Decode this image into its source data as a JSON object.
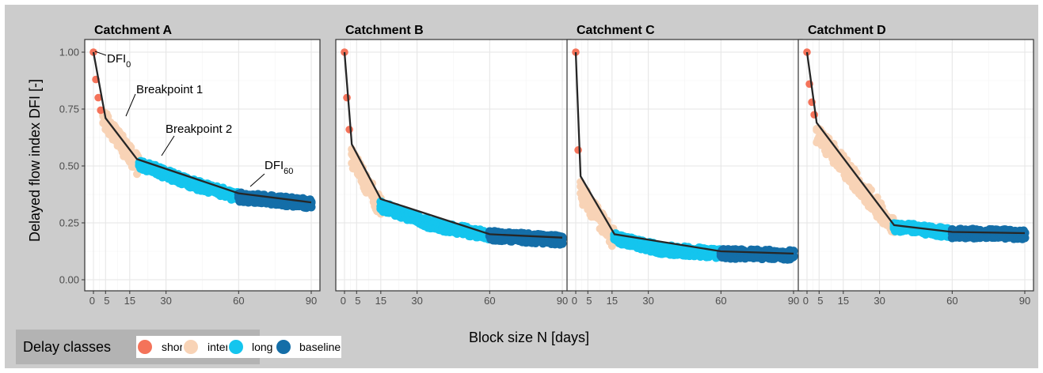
{
  "figure": {
    "background": "#cccccc",
    "ylabel": "Delayed flow index DFI [-]",
    "xlabel": "Block size N [days]"
  },
  "legend": {
    "title": "Delay classes",
    "items": [
      {
        "label": "short",
        "color": "#f4735a"
      },
      {
        "label": "inter",
        "color": "#f8d3b6"
      },
      {
        "label": "long",
        "color": "#14c5ee"
      },
      {
        "label": "baseline",
        "color": "#146ea8"
      }
    ]
  },
  "annotations": {
    "dfi0_main": "DFI",
    "dfi0_sub": "0",
    "bp1": "Breakpoint 1",
    "bp2": "Breakpoint 2",
    "dfi60_main": "DFI",
    "dfi60_sub": "60"
  },
  "chart_data": [
    {
      "type": "scatter",
      "title": "Catchment A",
      "xlim": [
        0,
        90
      ],
      "ylim": [
        0,
        1
      ],
      "x_ticks": [
        0,
        5,
        15,
        30,
        60,
        90
      ],
      "y_ticks": [
        "0.00",
        "0.25",
        "0.50",
        "0.75",
        "1.00"
      ],
      "short_points": [
        {
          "x": 0,
          "y": 1.0
        },
        {
          "x": 1,
          "y": 0.88
        },
        {
          "x": 2,
          "y": 0.8
        },
        {
          "x": 3,
          "y": 0.745
        }
      ],
      "class_ranges": {
        "inter": [
          4,
          19
        ],
        "long": [
          19,
          60
        ],
        "baseline": [
          60,
          90
        ]
      },
      "breakpoints": [
        {
          "x": 0,
          "y": 1.0
        },
        {
          "x": 5,
          "y": 0.71
        },
        {
          "x": 18,
          "y": 0.53
        },
        {
          "x": 60,
          "y": 0.38
        },
        {
          "x": 90,
          "y": 0.34
        }
      ],
      "scatter_curve": [
        {
          "x": 4,
          "y": 0.72
        },
        {
          "x": 18,
          "y": 0.52
        },
        {
          "x": 40,
          "y": 0.43
        },
        {
          "x": 60,
          "y": 0.37
        },
        {
          "x": 90,
          "y": 0.34
        }
      ]
    },
    {
      "type": "scatter",
      "title": "Catchment B",
      "xlim": [
        0,
        90
      ],
      "ylim": [
        0,
        1
      ],
      "x_ticks": [
        0,
        5,
        15,
        30,
        60,
        90
      ],
      "y_ticks": [
        "0.00",
        "0.25",
        "0.50",
        "0.75",
        "1.00"
      ],
      "short_points": [
        {
          "x": 0,
          "y": 1.0
        },
        {
          "x": 1,
          "y": 0.8
        },
        {
          "x": 2,
          "y": 0.66
        }
      ],
      "class_ranges": {
        "inter": [
          3,
          15
        ],
        "long": [
          15,
          60
        ],
        "baseline": [
          60,
          90
        ]
      },
      "breakpoints": [
        {
          "x": 0,
          "y": 1.0
        },
        {
          "x": 3,
          "y": 0.595
        },
        {
          "x": 15,
          "y": 0.355
        },
        {
          "x": 60,
          "y": 0.2
        },
        {
          "x": 90,
          "y": 0.185
        }
      ],
      "scatter_curve": [
        {
          "x": 3,
          "y": 0.55
        },
        {
          "x": 15,
          "y": 0.33
        },
        {
          "x": 35,
          "y": 0.25
        },
        {
          "x": 60,
          "y": 0.2
        },
        {
          "x": 90,
          "y": 0.18
        }
      ]
    },
    {
      "type": "scatter",
      "title": "Catchment C",
      "xlim": [
        0,
        90
      ],
      "ylim": [
        0,
        1
      ],
      "x_ticks": [
        0,
        5,
        15,
        30,
        60,
        90
      ],
      "y_ticks": [
        "0.00",
        "0.25",
        "0.50",
        "0.75",
        "1.00"
      ],
      "short_points": [
        {
          "x": 0,
          "y": 1.0
        },
        {
          "x": 1,
          "y": 0.57
        }
      ],
      "class_ranges": {
        "inter": [
          2,
          16
        ],
        "long": [
          16,
          60
        ],
        "baseline": [
          60,
          90
        ]
      },
      "breakpoints": [
        {
          "x": 0,
          "y": 1.0
        },
        {
          "x": 2,
          "y": 0.455
        },
        {
          "x": 16,
          "y": 0.2
        },
        {
          "x": 60,
          "y": 0.125
        },
        {
          "x": 90,
          "y": 0.115
        }
      ],
      "scatter_curve": [
        {
          "x": 2,
          "y": 0.4
        },
        {
          "x": 16,
          "y": 0.19
        },
        {
          "x": 35,
          "y": 0.14
        },
        {
          "x": 60,
          "y": 0.12
        },
        {
          "x": 90,
          "y": 0.115
        }
      ]
    },
    {
      "type": "scatter",
      "title": "Catchment D",
      "xlim": [
        0,
        90
      ],
      "ylim": [
        0,
        1
      ],
      "x_ticks": [
        0,
        5,
        15,
        30,
        60,
        90
      ],
      "y_ticks": [
        "0.00",
        "0.25",
        "0.50",
        "0.75",
        "1.00"
      ],
      "short_points": [
        {
          "x": 0,
          "y": 1.0
        },
        {
          "x": 1,
          "y": 0.86
        },
        {
          "x": 2,
          "y": 0.78
        },
        {
          "x": 3,
          "y": 0.725
        }
      ],
      "class_ranges": {
        "inter": [
          4,
          36
        ],
        "long": [
          36,
          60
        ],
        "baseline": [
          60,
          90
        ]
      },
      "breakpoints": [
        {
          "x": 0,
          "y": 1.0
        },
        {
          "x": 4,
          "y": 0.69
        },
        {
          "x": 36,
          "y": 0.24
        },
        {
          "x": 60,
          "y": 0.21
        },
        {
          "x": 90,
          "y": 0.205
        }
      ],
      "scatter_curve": [
        {
          "x": 4,
          "y": 0.66
        },
        {
          "x": 36,
          "y": 0.24
        },
        {
          "x": 60,
          "y": 0.21
        },
        {
          "x": 90,
          "y": 0.205
        }
      ]
    }
  ]
}
